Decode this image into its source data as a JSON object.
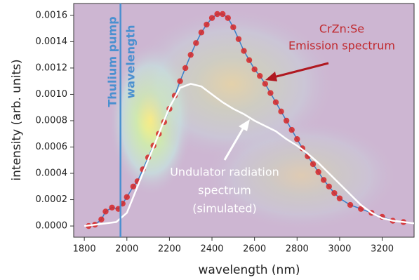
{
  "chart_data": {
    "type": "scatter",
    "xlabel": "wavelength (nm)",
    "ylabel": "intensity (arb. units)",
    "xlim": [
      1750,
      3350
    ],
    "ylim": [
      -8.5e-05,
      0.00169
    ],
    "xticks": [
      1800,
      2000,
      2200,
      2400,
      2600,
      2800,
      3000,
      3200
    ],
    "yticks": [
      {
        "value": 0,
        "label": "0.0000"
      },
      {
        "value": 0.0002,
        "label": "0.0002"
      },
      {
        "value": 0.0004,
        "label": "0.0004"
      },
      {
        "value": 0.0006,
        "label": "0.0006"
      },
      {
        "value": 0.0008,
        "label": "0.0008"
      },
      {
        "value": 0.001,
        "label": "0.0010"
      },
      {
        "value": 0.0012,
        "label": "0.0012"
      },
      {
        "value": 0.0014,
        "label": "0.0014"
      },
      {
        "value": 0.0016,
        "label": "0.0016"
      }
    ],
    "pump_wavelength": 1970,
    "pump_color": "#4a90d0",
    "series": [
      {
        "color": "#d62728",
        "line_color": "#3a7fc8",
        "markers": true,
        "x": [
          1820,
          1850,
          1880,
          1900,
          1930,
          1960,
          1980,
          2000,
          2030,
          2050,
          2075,
          2100,
          2125,
          2150,
          2175,
          2200,
          2225,
          2250,
          2275,
          2300,
          2325,
          2350,
          2375,
          2400,
          2425,
          2450,
          2475,
          2500,
          2525,
          2550,
          2575,
          2600,
          2625,
          2650,
          2675,
          2700,
          2725,
          2750,
          2775,
          2800,
          2825,
          2850,
          2875,
          2900,
          2925,
          2950,
          2975,
          3000,
          3050,
          3100,
          3150,
          3200,
          3250,
          3300
        ],
        "values": [
          0,
          1e-05,
          5e-05,
          0.00011,
          0.00014,
          0.00013,
          0.00017,
          0.00022,
          0.0003,
          0.00034,
          0.00043,
          0.00052,
          0.00061,
          0.0007,
          0.00079,
          0.00089,
          0.00099,
          0.0011,
          0.0012,
          0.0013,
          0.00139,
          0.00147,
          0.00153,
          0.00158,
          0.00161,
          0.00161,
          0.00158,
          0.00151,
          0.00142,
          0.00133,
          0.00126,
          0.00119,
          0.00114,
          0.00108,
          0.00101,
          0.00094,
          0.00087,
          0.0008,
          0.00073,
          0.00066,
          0.00059,
          0.00053,
          0.00047,
          0.00041,
          0.00035,
          0.0003,
          0.00025,
          0.00021,
          0.00016,
          0.00013,
          0.0001,
          7e-05,
          4e-05,
          3e-05
        ]
      },
      {
        "color": "#ffffff",
        "markers": false,
        "x": [
          1800,
          1950,
          2000,
          2050,
          2100,
          2150,
          2200,
          2250,
          2300,
          2350,
          2400,
          2450,
          2500,
          2550,
          2600,
          2650,
          2700,
          2750,
          2800,
          2850,
          2900,
          2950,
          3000,
          3050,
          3100,
          3150,
          3200,
          3250,
          3300,
          3350
        ],
        "values": [
          0,
          3e-05,
          0.0001,
          0.0003,
          0.0005,
          0.0007,
          0.0009,
          0.00105,
          0.00108,
          0.00106,
          0.001,
          0.00094,
          0.00089,
          0.00085,
          0.0008,
          0.00076,
          0.00072,
          0.00066,
          0.00061,
          0.00055,
          0.00048,
          0.0004,
          0.00032,
          0.00024,
          0.00016,
          0.0001,
          6e-05,
          4e-05,
          3e-05,
          2e-05
        ]
      }
    ],
    "annotations": [
      "Thulium pump",
      "wavelength",
      "CrZn:Se",
      "Emission spectrum",
      "Undulator radiation",
      "spectrum",
      "(simulated)"
    ],
    "annotation_colors": [
      "#4a90d0",
      "#4a90d0",
      "#c0282d",
      "#c0282d",
      "#ffffff",
      "#ffffff",
      "#ffffff"
    ]
  }
}
